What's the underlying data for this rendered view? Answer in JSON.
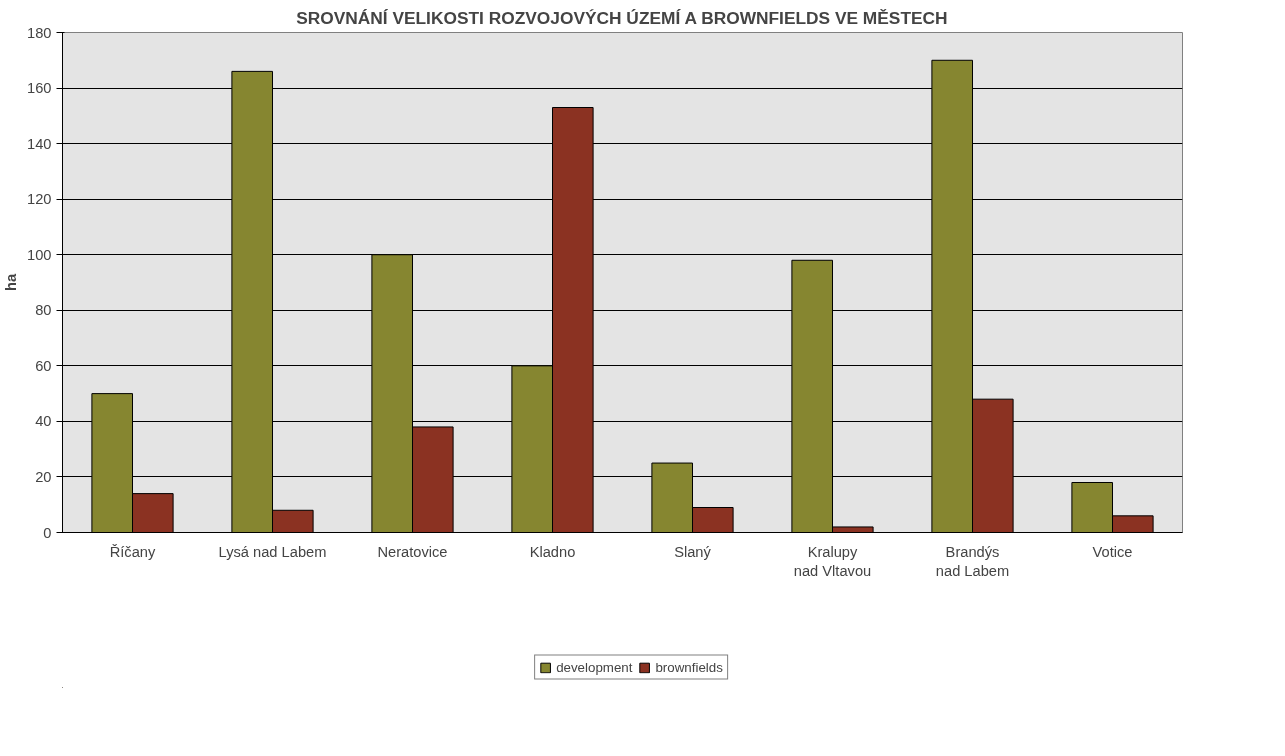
{
  "chart_data": {
    "type": "bar",
    "title": "SROVNÁNÍ VELIKOSTI ROZVOJOVÝCH ÚZEMÍ A BROWNFIELDS VE MĚSTECH",
    "ylabel": "ha",
    "categories": [
      "Říčany",
      "Lysá nad Labem",
      "Neratovice",
      "Kladno",
      "Slaný",
      "Kralupy nad Vltavou",
      "Brandýs nad Labem",
      "Votice"
    ],
    "series": [
      {
        "name": "development",
        "color": "#868630",
        "values": [
          50,
          166,
          100,
          60,
          25,
          98,
          170,
          18
        ]
      },
      {
        "name": "brownfields",
        "color": "#8b3222",
        "values": [
          14,
          8,
          38,
          153,
          9,
          2,
          48,
          6
        ]
      }
    ],
    "ylim": [
      0,
      180
    ],
    "yticks": [
      0,
      20,
      40,
      60,
      80,
      100,
      120,
      140,
      160,
      180
    ],
    "grid": "y",
    "legend": "bottom"
  }
}
